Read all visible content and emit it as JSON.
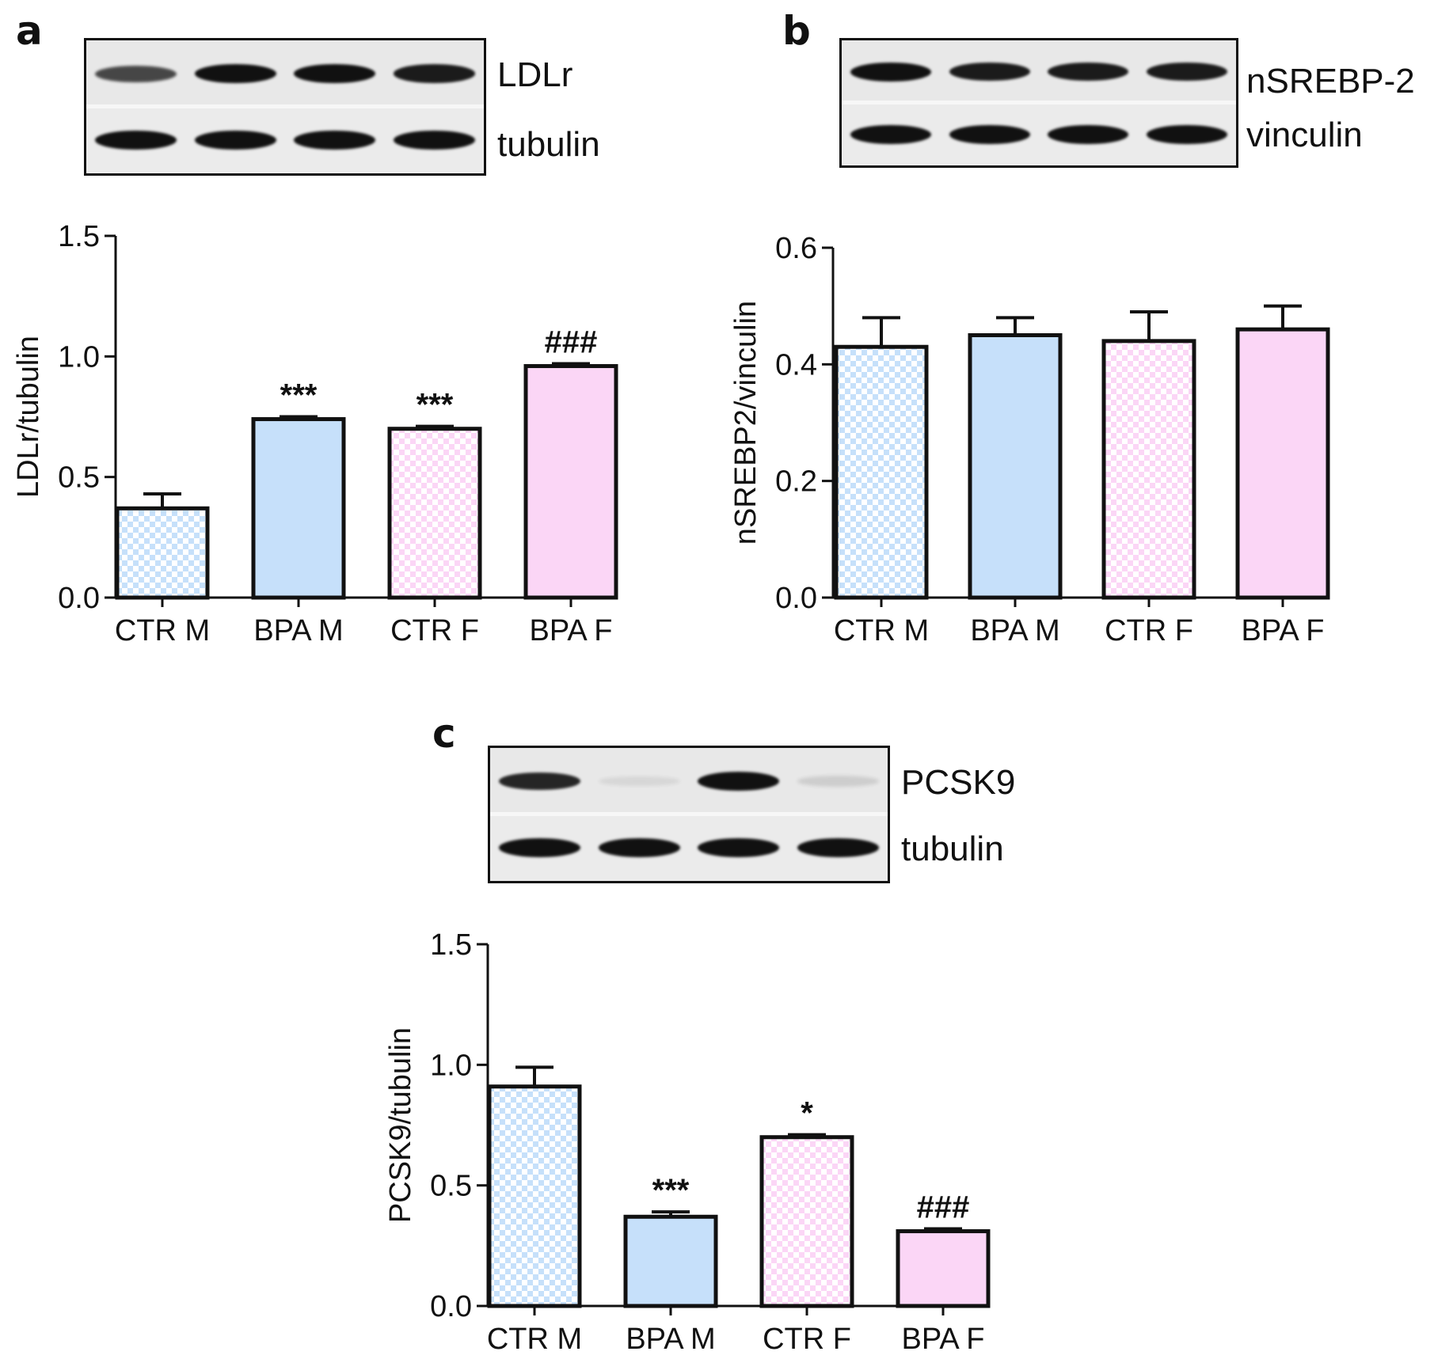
{
  "colors": {
    "male": "#c6e0fa",
    "female": "#fbd6f6",
    "axis": "#111111",
    "band": "#111111"
  },
  "panels": [
    {
      "letter": "a",
      "blot": {
        "top_label": "LDLr",
        "bottom_label": "tubulin",
        "top_band_intensity": [
          0.75,
          1.0,
          1.0,
          0.95
        ],
        "bottom_band_intensity": [
          1.0,
          1.0,
          1.0,
          1.0
        ]
      }
    },
    {
      "letter": "b",
      "blot": {
        "top_label": "nSREBP-2",
        "bottom_label": "vinculin",
        "top_band_intensity": [
          1.0,
          0.95,
          0.95,
          0.95
        ],
        "bottom_band_intensity": [
          1.0,
          1.0,
          1.0,
          1.0
        ]
      }
    },
    {
      "letter": "c",
      "blot": {
        "top_label": "PCSK9",
        "bottom_label": "tubulin",
        "top_band_intensity": [
          0.9,
          0.05,
          1.0,
          0.12
        ],
        "bottom_band_intensity": [
          1.0,
          1.0,
          1.0,
          1.0
        ]
      }
    }
  ],
  "chart_data": [
    {
      "type": "bar",
      "panel": "a",
      "categories": [
        "CTR M",
        "BPA M",
        "CTR F",
        "BPA F"
      ],
      "values": [
        0.37,
        0.74,
        0.7,
        0.96
      ],
      "errors": [
        0.06,
        0.01,
        0.01,
        0.01
      ],
      "annotations": [
        "",
        "***",
        "***",
        "###"
      ],
      "ylabel": "LDLr/tubulin",
      "ylim": [
        0.0,
        1.5
      ],
      "yticks": [
        "0.0",
        "0.5",
        "1.0",
        "1.5"
      ],
      "fill_patterns": [
        "checker",
        "solid",
        "checker",
        "solid"
      ],
      "fill_groups": [
        "male",
        "male",
        "female",
        "female"
      ]
    },
    {
      "type": "bar",
      "panel": "b",
      "categories": [
        "CTR M",
        "BPA M",
        "CTR F",
        "BPA F"
      ],
      "values": [
        0.43,
        0.45,
        0.44,
        0.46
      ],
      "errors": [
        0.05,
        0.03,
        0.05,
        0.04
      ],
      "annotations": [
        "",
        "",
        "",
        ""
      ],
      "ylabel": "nSREBP2/vinculin",
      "ylim": [
        0.0,
        0.6
      ],
      "yticks": [
        "0.0",
        "0.2",
        "0.4",
        "0.6"
      ],
      "fill_patterns": [
        "checker",
        "solid",
        "checker",
        "solid"
      ],
      "fill_groups": [
        "male",
        "male",
        "female",
        "female"
      ]
    },
    {
      "type": "bar",
      "panel": "c",
      "categories": [
        "CTR M",
        "BPA M",
        "CTR F",
        "BPA F"
      ],
      "values": [
        0.91,
        0.37,
        0.7,
        0.31
      ],
      "errors": [
        0.08,
        0.02,
        0.01,
        0.01
      ],
      "annotations": [
        "",
        "***",
        "*",
        "###"
      ],
      "ylabel": "PCSK9/tubulin",
      "ylim": [
        0.0,
        1.5
      ],
      "yticks": [
        "0.0",
        "0.5",
        "1.0",
        "1.5"
      ],
      "fill_patterns": [
        "checker",
        "solid",
        "checker",
        "solid"
      ],
      "fill_groups": [
        "male",
        "male",
        "female",
        "female"
      ]
    }
  ]
}
